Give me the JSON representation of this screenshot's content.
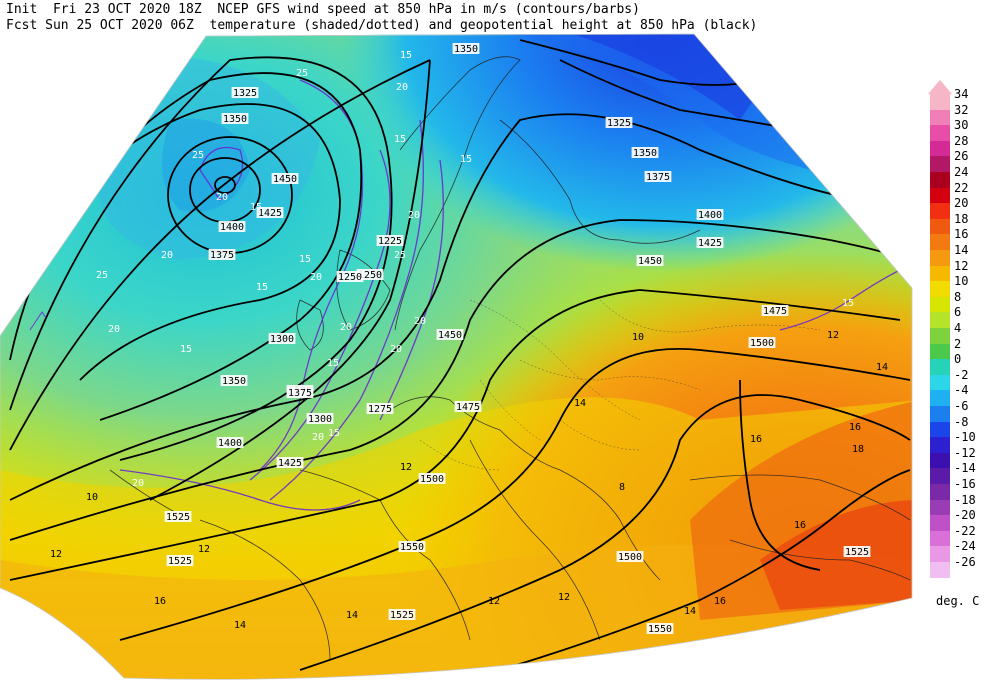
{
  "header": {
    "line1": "Init  Fri 23 OCT 2020 18Z  NCEP GFS wind speed at 850 hPa in m/s (contours/barbs)",
    "line2": "Fcst Sun 25 OCT 2020 06Z  temperature (shaded/dotted) and geopotential height at 850 hPa (black)"
  },
  "colorbar": {
    "units": "deg. C",
    "levels": [
      "34",
      "32",
      "30",
      "28",
      "26",
      "24",
      "22",
      "20",
      "18",
      "16",
      "14",
      "12",
      "10",
      "8",
      "6",
      "4",
      "2",
      "0",
      "-2",
      "-4",
      "-6",
      "-8",
      "-10",
      "-12",
      "-14",
      "-16",
      "-18",
      "-20",
      "-22",
      "-24",
      "-26"
    ],
    "colors": [
      "#f7b6c8",
      "#f07fb8",
      "#e84ea8",
      "#d42a96",
      "#b31866",
      "#a8001e",
      "#d40010",
      "#f03010",
      "#f05a10",
      "#f37a10",
      "#f59a10",
      "#f7b900",
      "#f2dc00",
      "#d7e600",
      "#b4e32a",
      "#7ed33c",
      "#4cc84a",
      "#26d2b8",
      "#2ad6e8",
      "#1eb0f0",
      "#1b7ff0",
      "#1b45e8",
      "#2c20d0",
      "#3c10b0",
      "#5a1ca8",
      "#7a2aa8",
      "#9a3cb4",
      "#c050c8",
      "#d870d8",
      "#e898e4",
      "#f0bef0"
    ]
  },
  "map": {
    "height_labels": [
      "1350",
      "1325",
      "1350",
      "1375",
      "1400",
      "1425",
      "1450",
      "1475",
      "1500",
      "1450",
      "1425",
      "1400",
      "1375",
      "1350",
      "1325",
      "1300",
      "1275",
      "1250",
      "1225",
      "1250",
      "1275",
      "1300",
      "1350",
      "1375",
      "1400",
      "1425",
      "1450",
      "1475",
      "1500",
      "1525",
      "1550",
      "1525",
      "1500",
      "1525",
      "1550",
      "1525"
    ],
    "wind_labels": [
      "25",
      "15",
      "20",
      "15",
      "15",
      "20",
      "25",
      "20",
      "15",
      "20",
      "15",
      "15",
      "20",
      "20",
      "25",
      "20",
      "15",
      "20",
      "25",
      "20",
      "15",
      "20",
      "15",
      "20",
      "15"
    ],
    "temp_labels": [
      "12",
      "14",
      "16",
      "14",
      "12",
      "10",
      "12",
      "12",
      "14",
      "16",
      "16",
      "18",
      "16",
      "14",
      "12",
      "10",
      "8",
      "12",
      "16",
      "14"
    ]
  }
}
